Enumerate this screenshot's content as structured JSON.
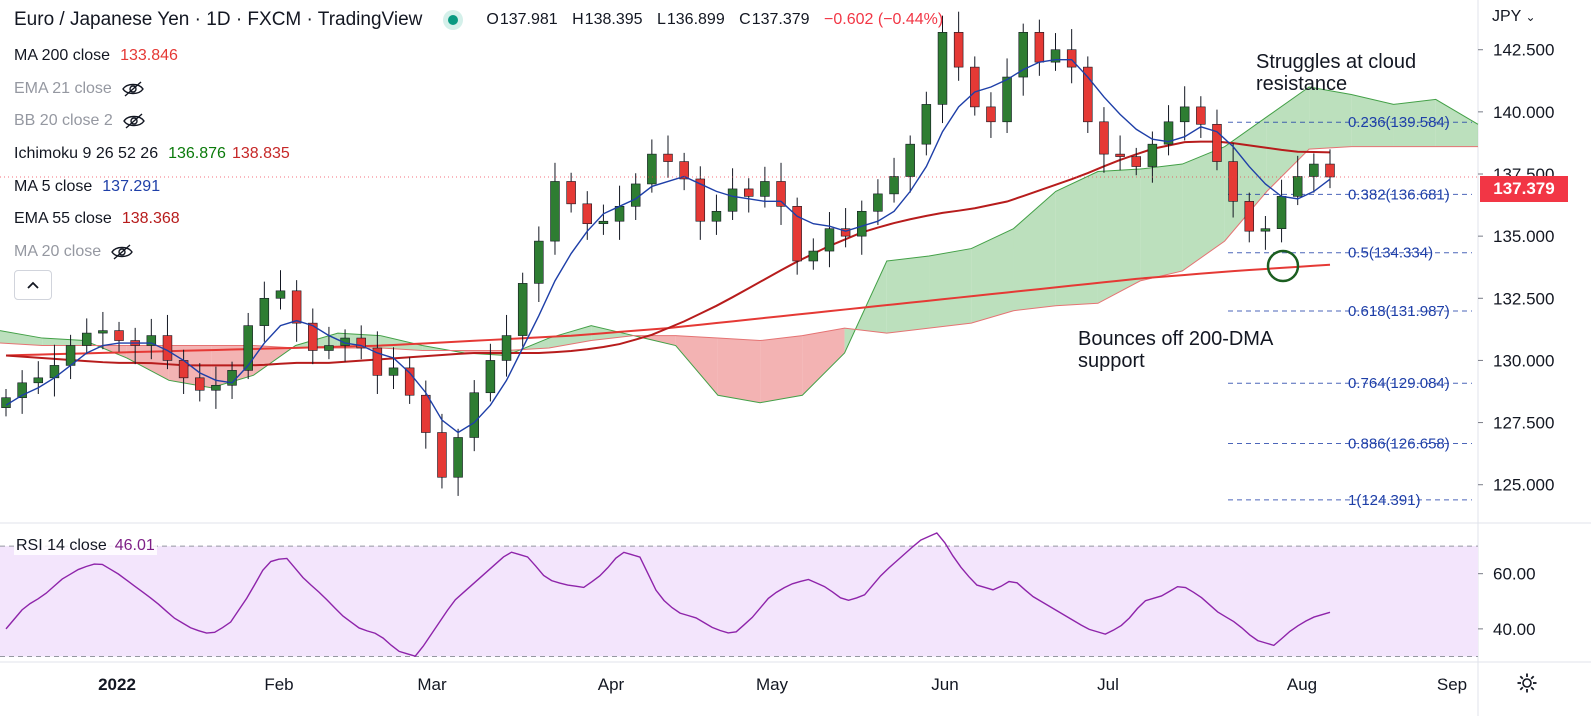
{
  "header": {
    "title": "Euro / Japanese Yen · 1D · FXCM · TradingView",
    "ohlc": [
      {
        "label": "O",
        "value": "137.981"
      },
      {
        "label": "H",
        "value": "138.395"
      },
      {
        "label": "L",
        "value": "136.899"
      },
      {
        "label": "C",
        "value": "137.379"
      }
    ],
    "change": "−0.602 (−0.44%)",
    "currency": "JPY",
    "currency_chevron": "⌄"
  },
  "indicators": [
    {
      "name": "MA 200 close",
      "values": [
        "133.846"
      ],
      "colors": [
        "#e53935"
      ],
      "hidden": false
    },
    {
      "name": "EMA 21 close",
      "values": [],
      "colors": [],
      "hidden": true
    },
    {
      "name": "BB 20 close 2",
      "values": [],
      "colors": [],
      "hidden": true
    },
    {
      "name": "Ichimoku 9 26 52 26",
      "values": [
        "136.876",
        "138.835"
      ],
      "colors": [
        "#0a7a0a",
        "#c62828"
      ],
      "hidden": false
    },
    {
      "name": "MA 5 close",
      "values": [
        "137.291"
      ],
      "colors": [
        "#1e3fa8"
      ],
      "hidden": false
    },
    {
      "name": "EMA 55 close",
      "values": [
        "138.368"
      ],
      "colors": [
        "#b71c1c"
      ],
      "hidden": false
    },
    {
      "name": "MA 20 close",
      "values": [],
      "colors": [],
      "hidden": true
    }
  ],
  "last_price": "137.379",
  "rsi": {
    "name": "RSI 14 close",
    "value": "46.01"
  },
  "annotations": {
    "cloud": [
      "Struggles at cloud",
      "resistance"
    ],
    "support": [
      "Bounces off 200-DMA",
      "support"
    ]
  },
  "colors": {
    "up": "#2e7d32",
    "down": "#e53935",
    "ma5": "#1e3fa8",
    "ema55": "#b71c1c",
    "ma200": "#e53935",
    "cloud_bull": "#a5d6a7",
    "cloud_bear": "#ef9a9a",
    "rsi": "#8e24aa",
    "rsi_band": "#f3e5fc",
    "fib": "#1e3fa8"
  },
  "chart_data": {
    "type": "candlestick",
    "symbol": "EURJPY",
    "timeframe": "1D",
    "x_labels": [
      "2022",
      "Feb",
      "Mar",
      "Apr",
      "May",
      "Jun",
      "Jul",
      "Aug",
      "Sep"
    ],
    "price_ticks": [
      "142.500",
      "140.000",
      "137.500",
      "135.000",
      "132.500",
      "130.000",
      "127.500",
      "125.000"
    ],
    "ylim": [
      123.5,
      144.5
    ],
    "fibonacci": [
      {
        "label": "0.236(139.584)",
        "level": 139.584
      },
      {
        "label": "0.382(136.681)",
        "level": 136.681
      },
      {
        "label": "0.5(134.334)",
        "level": 134.334
      },
      {
        "label": "0.618(131.987)",
        "level": 131.987
      },
      {
        "label": "0.764(129.084)",
        "level": 129.084
      },
      {
        "label": "0.886(126.658)",
        "level": 126.658
      },
      {
        "label": "1(124.391)",
        "level": 124.391
      }
    ],
    "close_approx": [
      128.5,
      129.1,
      129.3,
      129.8,
      130.6,
      131.1,
      131.2,
      130.8,
      130.6,
      131.0,
      130.0,
      129.3,
      128.8,
      129.0,
      129.6,
      131.4,
      132.5,
      132.8,
      131.5,
      130.4,
      130.6,
      130.9,
      130.5,
      129.4,
      129.7,
      128.6,
      127.1,
      125.3,
      126.9,
      128.7,
      130.0,
      131.0,
      133.1,
      134.8,
      137.2,
      136.3,
      135.5,
      135.6,
      136.2,
      137.1,
      138.3,
      138.0,
      137.3,
      135.6,
      136.0,
      136.9,
      136.6,
      137.2,
      136.2,
      134.0,
      134.4,
      135.3,
      135.0,
      136.0,
      136.7,
      137.4,
      138.7,
      140.3,
      143.2,
      141.8,
      140.2,
      139.6,
      141.4,
      143.2,
      142.0,
      142.5,
      141.8,
      139.6,
      138.3,
      138.2,
      137.8,
      138.7,
      139.6,
      140.2,
      139.5,
      138.0,
      136.4,
      135.2,
      135.3,
      136.6,
      137.4,
      137.9,
      137.38
    ],
    "ma5_approx": [
      128.2,
      128.6,
      128.9,
      129.3,
      129.8,
      130.3,
      130.6,
      130.7,
      130.7,
      130.7,
      130.4,
      130.0,
      129.5,
      129.2,
      129.1,
      129.8,
      130.7,
      131.4,
      131.6,
      131.4,
      131.0,
      130.7,
      130.6,
      130.3,
      130.1,
      129.5,
      128.7,
      127.6,
      127.1,
      127.5,
      128.2,
      129.2,
      130.5,
      131.8,
      133.2,
      134.3,
      135.2,
      135.9,
      136.2,
      136.5,
      137.0,
      137.2,
      137.4,
      137.1,
      136.8,
      136.6,
      136.5,
      136.4,
      136.4,
      135.8,
      135.5,
      135.4,
      135.2,
      135.4,
      135.6,
      136.0,
      136.8,
      137.8,
      139.2,
      140.2,
      140.8,
      141.0,
      141.3,
      141.7,
      142.0,
      142.1,
      142.1,
      141.4,
      140.6,
      139.9,
      139.3,
      138.9,
      138.8,
      139.0,
      139.4,
      139.2,
      138.6,
      137.8,
      137.1,
      136.6,
      136.5,
      136.8,
      137.29
    ],
    "ema55_approx": [
      130.2,
      130.1,
      130.0,
      129.9,
      129.9,
      129.8,
      129.8,
      129.8,
      129.9,
      129.9,
      130.0,
      130.1,
      130.2,
      130.3,
      130.3,
      130.3,
      130.4,
      130.6,
      131.0,
      131.6,
      132.3,
      133.1,
      133.9,
      134.6,
      135.2,
      135.6,
      135.9,
      136.1,
      136.4,
      136.9,
      137.4,
      138.0,
      138.5,
      138.8,
      138.8,
      138.6,
      138.4,
      138.37
    ],
    "ma200_approx": [
      130.2,
      130.3,
      130.4,
      130.5,
      130.6,
      130.8,
      131.0,
      131.3,
      131.7,
      132.1,
      132.5,
      132.9,
      133.3,
      133.6,
      133.85
    ],
    "rsi": {
      "ylim": [
        28,
        78
      ],
      "ticks": [
        "60.00",
        "40.00"
      ],
      "band": [
        30,
        70
      ]
    }
  }
}
